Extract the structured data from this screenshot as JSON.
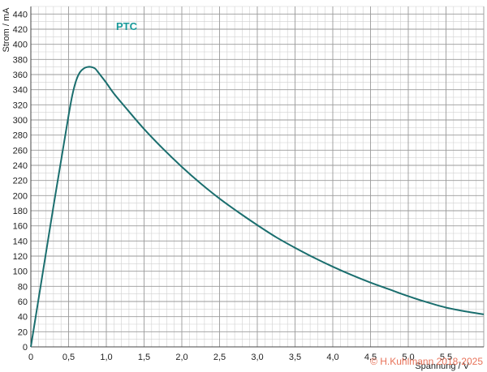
{
  "chart_data": {
    "type": "line",
    "xlabel": "Spannung / V",
    "ylabel": "Strom / mA",
    "xlim": [
      0,
      6.0
    ],
    "ylim": [
      0,
      450
    ],
    "grid": true,
    "x_ticks": [
      "0",
      "0,5",
      "1,0",
      "1,5",
      "2,0",
      "2,5",
      "3,0",
      "3,5",
      "4,0",
      "4,5",
      "5,0",
      "5,5"
    ],
    "x_tick_values": [
      0,
      0.5,
      1.0,
      1.5,
      2.0,
      2.5,
      3.0,
      3.5,
      4.0,
      4.5,
      5.0,
      5.5
    ],
    "y_ticks": [
      "0",
      "20",
      "40",
      "60",
      "80",
      "100",
      "120",
      "140",
      "160",
      "180",
      "200",
      "220",
      "240",
      "260",
      "280",
      "300",
      "320",
      "340",
      "360",
      "380",
      "400",
      "420",
      "440"
    ],
    "y_tick_values": [
      0,
      20,
      40,
      60,
      80,
      100,
      120,
      140,
      160,
      180,
      200,
      220,
      240,
      260,
      280,
      300,
      320,
      340,
      360,
      380,
      400,
      420,
      440
    ],
    "series": [
      {
        "name": "PTC",
        "color": "#1a6e6e",
        "x": [
          0,
          0.1,
          0.2,
          0.3,
          0.4,
          0.5,
          0.55,
          0.6,
          0.65,
          0.7,
          0.75,
          0.8,
          0.85,
          0.9,
          1.0,
          1.1,
          1.25,
          1.5,
          1.75,
          2.0,
          2.25,
          2.5,
          2.75,
          3.0,
          3.25,
          3.5,
          3.75,
          4.0,
          4.25,
          4.5,
          4.75,
          5.0,
          5.25,
          5.5,
          5.75,
          6.0
        ],
        "y": [
          0,
          62,
          124,
          186,
          246,
          306,
          333,
          352,
          363,
          368,
          370,
          370,
          368,
          362,
          349,
          335,
          317,
          288,
          262,
          238,
          216,
          196,
          178,
          161,
          145,
          131,
          118,
          106,
          95,
          85,
          76,
          67,
          59,
          52,
          47,
          43
        ]
      }
    ],
    "series_label_color": "#1a9a9a"
  },
  "copyright": {
    "text": "© H.Kuhlmann 2018-2025",
    "color": "#e8735a"
  }
}
